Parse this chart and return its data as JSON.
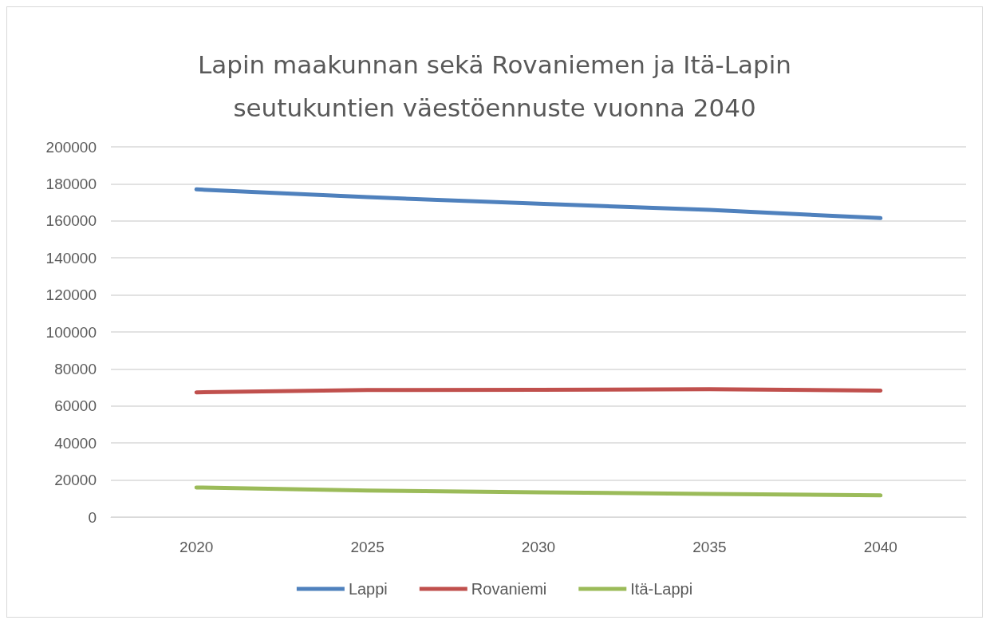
{
  "chart_data": {
    "type": "line",
    "title": "Lapin maakunnan sekä Rovaniemen ja Itä-Lapin\nseutukuntien väestöennuste vuonna 2040",
    "categories": [
      "2020",
      "2025",
      "2030",
      "2035",
      "2040"
    ],
    "series": [
      {
        "name": "Lappi",
        "color": "#4f81bd",
        "values": [
          177000,
          172800,
          169300,
          165900,
          161500
        ]
      },
      {
        "name": "Rovaniemi",
        "color": "#c0504d",
        "values": [
          67400,
          68600,
          68700,
          69100,
          68300
        ]
      },
      {
        "name": "Itä-Lappi",
        "color": "#9bbb59",
        "values": [
          16000,
          14300,
          13400,
          12500,
          11700
        ]
      }
    ],
    "ylim": [
      0,
      200000
    ],
    "yticks": [
      0,
      20000,
      40000,
      60000,
      80000,
      100000,
      120000,
      140000,
      160000,
      180000,
      200000
    ],
    "grid": "y",
    "legend": "bottom",
    "marker": "none",
    "line_style": "solid"
  }
}
